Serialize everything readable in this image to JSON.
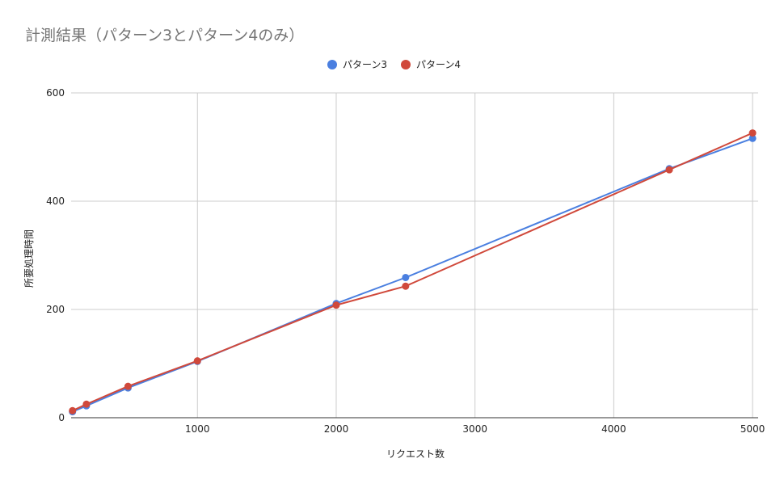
{
  "chart_data": {
    "type": "line",
    "title": "計測結果（パターン3とパターン4のみ）",
    "xlabel": "リクエスト数",
    "ylabel": "所要処理時間",
    "xlim": [
      90,
      5040
    ],
    "ylim": [
      0,
      600
    ],
    "xticks": [
      1000,
      2000,
      3000,
      4000,
      5000
    ],
    "yticks": [
      0,
      200,
      400,
      600
    ],
    "grid": true,
    "legend_position": "top-center",
    "series": [
      {
        "name": "パターン3",
        "color": "#4a7fe0",
        "x": [
          100,
          200,
          500,
          1000,
          2000,
          2500,
          4400,
          5000
        ],
        "y": [
          11,
          22,
          55,
          104,
          211,
          259,
          460,
          516
        ]
      },
      {
        "name": "パターン4",
        "color": "#d0493b",
        "x": [
          100,
          200,
          500,
          1000,
          2000,
          2500,
          4400,
          5000
        ],
        "y": [
          13,
          25,
          58,
          105,
          208,
          243,
          458,
          526
        ]
      }
    ]
  }
}
